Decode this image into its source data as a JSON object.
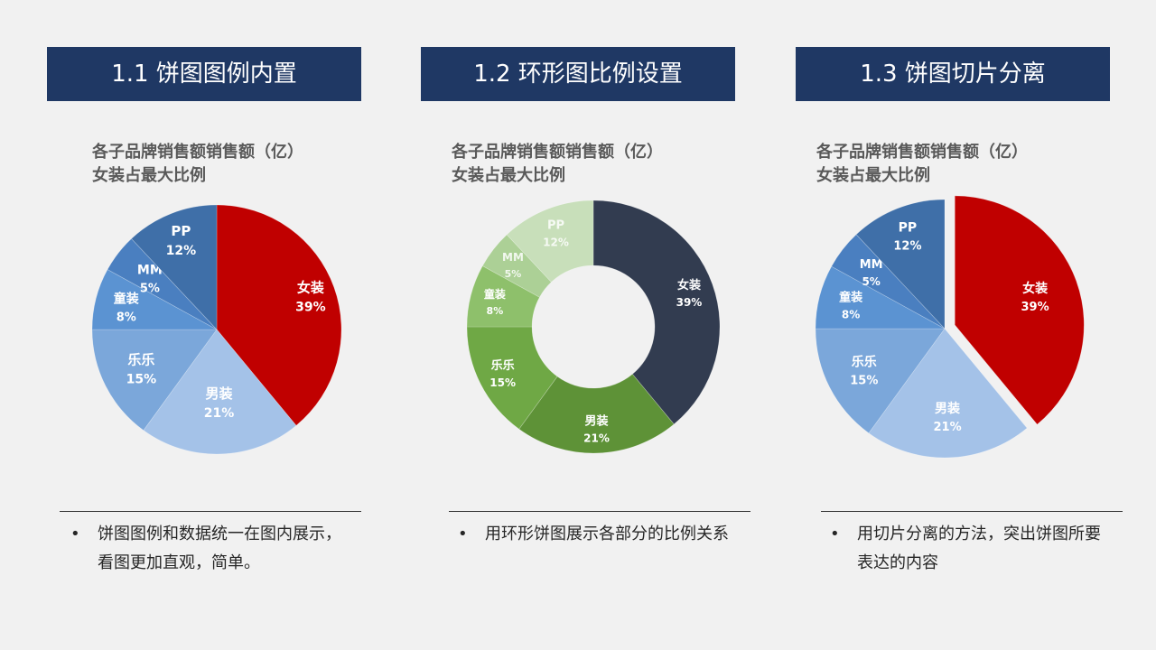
{
  "panels": [
    {
      "heading": "1.1 饼图图例内置",
      "title_line1": "各子品牌销售额销售额（亿）",
      "title_line2": "女装占最大比例",
      "note_line1": "饼图图例和数据统一在图内展示，",
      "note_line2": "看图更加直观，简单。"
    },
    {
      "heading": "1.2 环形图比例设置",
      "title_line1": "各子品牌销售额销售额（亿）",
      "title_line2": "女装占最大比例",
      "note_line1": "用环形饼图展示各部分的比例关系",
      "note_line2": ""
    },
    {
      "heading": "1.3 饼图切片分离",
      "title_line1": "各子品牌销售额销售额（亿）",
      "title_line2": "女装占最大比例",
      "note_line1": "用切片分离的方法，突出饼图所要",
      "note_line2": "表达的内容"
    }
  ],
  "bullet": "•",
  "chart_data": [
    {
      "type": "pie",
      "title": "各子品牌销售额销售额（亿） 女装占最大比例",
      "categories": [
        "女装",
        "男装",
        "乐乐",
        "童装",
        "MM",
        "PP"
      ],
      "values": [
        39,
        21,
        15,
        8,
        5,
        12
      ],
      "value_labels": [
        "39%",
        "21%",
        "15%",
        "8%",
        "5%",
        "12%"
      ],
      "colors": [
        "#c00000",
        "#a4c2e8",
        "#7ba7da",
        "#5b93d2",
        "#4a7fc0",
        "#3f6fa8"
      ],
      "legend": "inside"
    },
    {
      "type": "donut",
      "title": "各子品牌销售额销售额（亿） 女装占最大比例",
      "categories": [
        "女装",
        "男装",
        "乐乐",
        "童装",
        "MM",
        "PP"
      ],
      "values": [
        39,
        21,
        15,
        8,
        5,
        12
      ],
      "value_labels": [
        "39%",
        "21%",
        "15%",
        "8%",
        "5%",
        "12%"
      ],
      "colors": [
        "#323c50",
        "#5e9237",
        "#6fa845",
        "#8ec06b",
        "#acd096",
        "#c8dfba"
      ],
      "legend": "inside"
    },
    {
      "type": "pie",
      "title": "各子品牌销售额销售额（亿） 女装占最大比例",
      "categories": [
        "女装",
        "男装",
        "乐乐",
        "童装",
        "MM",
        "PP"
      ],
      "values": [
        39,
        21,
        15,
        8,
        5,
        12
      ],
      "value_labels": [
        "39%",
        "21%",
        "15%",
        "8%",
        "5%",
        "12%"
      ],
      "colors": [
        "#c00000",
        "#a4c2e8",
        "#7ba7da",
        "#5b93d2",
        "#4a7fc0",
        "#3f6fa8"
      ],
      "exploded": "女装",
      "legend": "inside"
    }
  ]
}
